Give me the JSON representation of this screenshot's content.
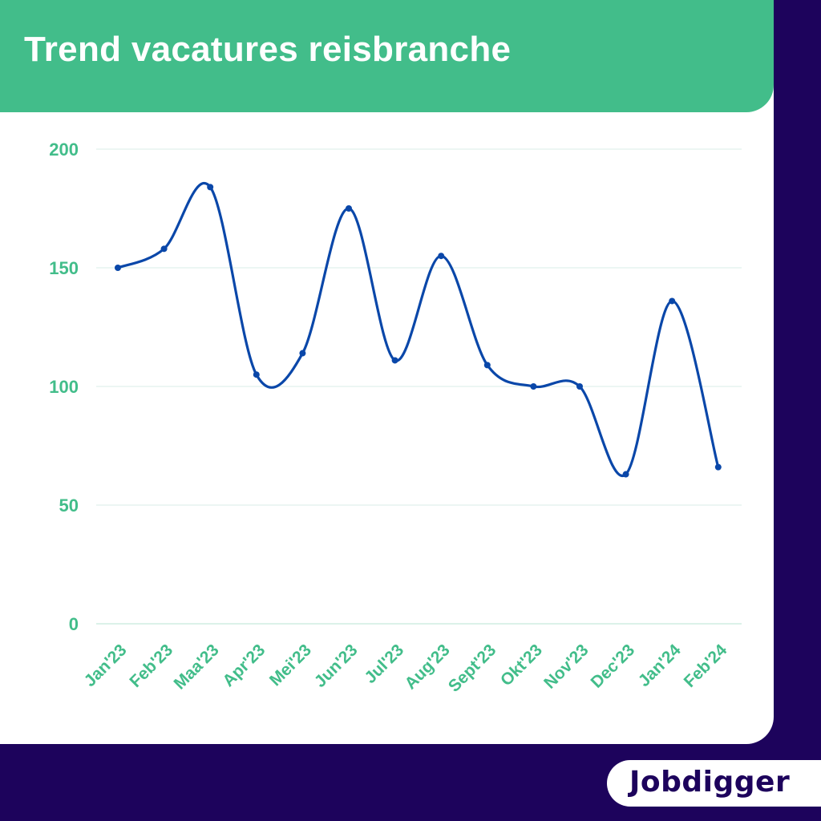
{
  "title": "Trend vacatures reisbranche",
  "logo": "Jobdigger",
  "colors": {
    "accent": "#42bd8a",
    "background": "#1d035c",
    "line": "#0a47a9",
    "grid": "#e6f4ef"
  },
  "chart_data": {
    "type": "line",
    "categories": [
      "Jan'23",
      "Feb'23",
      "Maa'23",
      "Apr'23",
      "Mei'23",
      "Jun'23",
      "Jul'23",
      "Aug'23",
      "Sept'23",
      "Okt'23",
      "Nov'23",
      "Dec'23",
      "Jan'24",
      "Feb'24"
    ],
    "values": [
      150,
      158,
      184,
      105,
      114,
      175,
      111,
      155,
      109,
      100,
      100,
      63,
      136,
      66
    ],
    "ylim": [
      0,
      200
    ],
    "yticks": [
      0,
      50,
      100,
      150,
      200
    ],
    "grid": true,
    "smooth": true,
    "markers": true,
    "xlabel": "",
    "ylabel": ""
  }
}
